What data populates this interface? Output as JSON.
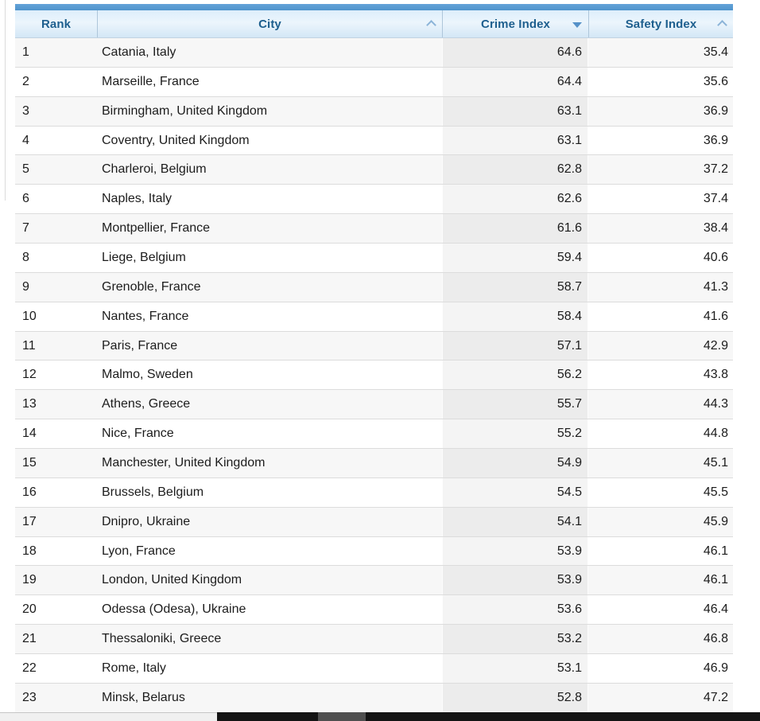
{
  "table": {
    "columns": [
      {
        "key": "rank",
        "label": "Rank",
        "sort_icon": null
      },
      {
        "key": "city",
        "label": "City",
        "sort_icon": "chevron-up"
      },
      {
        "key": "crime",
        "label": "Crime Index",
        "sort_icon": "triangle-down"
      },
      {
        "key": "safety",
        "label": "Safety Index",
        "sort_icon": "chevron-up"
      }
    ],
    "rows": [
      {
        "rank": "1",
        "city": "Catania, Italy",
        "crime": "64.6",
        "safety": "35.4"
      },
      {
        "rank": "2",
        "city": "Marseille, France",
        "crime": "64.4",
        "safety": "35.6"
      },
      {
        "rank": "3",
        "city": "Birmingham, United Kingdom",
        "crime": "63.1",
        "safety": "36.9"
      },
      {
        "rank": "4",
        "city": "Coventry, United Kingdom",
        "crime": "63.1",
        "safety": "36.9"
      },
      {
        "rank": "5",
        "city": "Charleroi, Belgium",
        "crime": "62.8",
        "safety": "37.2"
      },
      {
        "rank": "6",
        "city": "Naples, Italy",
        "crime": "62.6",
        "safety": "37.4"
      },
      {
        "rank": "7",
        "city": "Montpellier, France",
        "crime": "61.6",
        "safety": "38.4"
      },
      {
        "rank": "8",
        "city": "Liege, Belgium",
        "crime": "59.4",
        "safety": "40.6"
      },
      {
        "rank": "9",
        "city": "Grenoble, France",
        "crime": "58.7",
        "safety": "41.3"
      },
      {
        "rank": "10",
        "city": "Nantes, France",
        "crime": "58.4",
        "safety": "41.6"
      },
      {
        "rank": "11",
        "city": "Paris, France",
        "crime": "57.1",
        "safety": "42.9"
      },
      {
        "rank": "12",
        "city": "Malmo, Sweden",
        "crime": "56.2",
        "safety": "43.8"
      },
      {
        "rank": "13",
        "city": "Athens, Greece",
        "crime": "55.7",
        "safety": "44.3"
      },
      {
        "rank": "14",
        "city": "Nice, France",
        "crime": "55.2",
        "safety": "44.8"
      },
      {
        "rank": "15",
        "city": "Manchester, United Kingdom",
        "crime": "54.9",
        "safety": "45.1"
      },
      {
        "rank": "16",
        "city": "Brussels, Belgium",
        "crime": "54.5",
        "safety": "45.5"
      },
      {
        "rank": "17",
        "city": "Dnipro, Ukraine",
        "crime": "54.1",
        "safety": "45.9"
      },
      {
        "rank": "18",
        "city": "Lyon, France",
        "crime": "53.9",
        "safety": "46.1"
      },
      {
        "rank": "19",
        "city": "London, United Kingdom",
        "crime": "53.9",
        "safety": "46.1"
      },
      {
        "rank": "20",
        "city": "Odessa (Odesa), Ukraine",
        "crime": "53.6",
        "safety": "46.4"
      },
      {
        "rank": "21",
        "city": "Thessaloniki, Greece",
        "crime": "53.2",
        "safety": "46.8"
      },
      {
        "rank": "22",
        "city": "Rome, Italy",
        "crime": "53.1",
        "safety": "46.9"
      },
      {
        "rank": "23",
        "city": "Minsk, Belarus",
        "crime": "52.8",
        "safety": "47.2"
      }
    ]
  },
  "colors": {
    "accent_bar_top": "#63a2d8",
    "accent_bar_bottom": "#4f94cc",
    "header_text": "#1e5f8e",
    "sort_icon_active": "#5591c8",
    "sort_icon_inactive": "#8cb4d8",
    "row_stripe": "#f7f7f7",
    "scrollbar_dark": "#141414",
    "scrollbar_thumb": "#4f4f4f"
  }
}
